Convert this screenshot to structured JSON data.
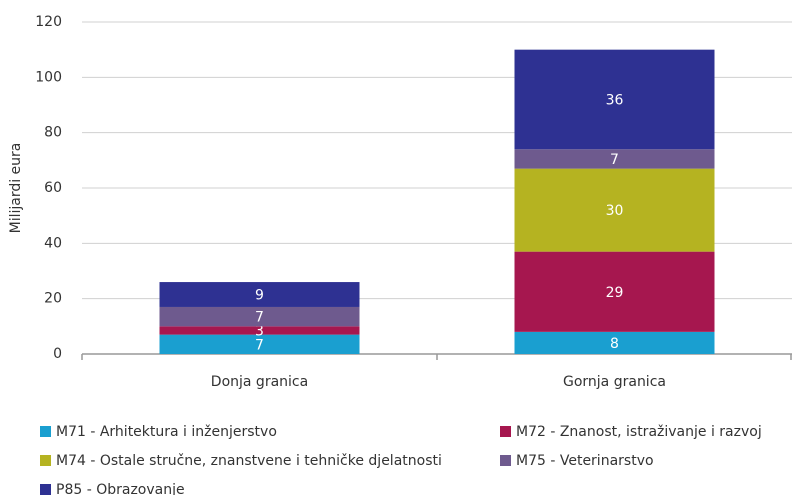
{
  "chart_data": {
    "type": "stacked_bar",
    "y_label": "Milijardi eura",
    "categories": [
      "Donja granica",
      "Gornja granica"
    ],
    "series": [
      {
        "name": "M71 - Arhitektura i inženjerstvo",
        "color": "#1a9fd0",
        "values": [
          7,
          8
        ]
      },
      {
        "name": "M72 - Znanost, istraživanje i razvoj",
        "color": "#a6174f",
        "values": [
          3,
          29
        ]
      },
      {
        "name": "M74 - Ostale stručne, znanstvene i tehničke djelatnosti",
        "color": "#b5b321",
        "values": [
          0,
          30
        ]
      },
      {
        "name": "M75 - Veterinarstvo",
        "color": "#6e5a8e",
        "values": [
          7,
          7
        ]
      },
      {
        "name": "P85 - Obrazovanje",
        "color": "#2e3192",
        "values": [
          9,
          36
        ]
      }
    ],
    "ylim": [
      0,
      120
    ],
    "yticks": [
      0,
      20,
      40,
      60,
      80,
      100,
      120
    ],
    "grid": true,
    "legend": "bottom"
  }
}
